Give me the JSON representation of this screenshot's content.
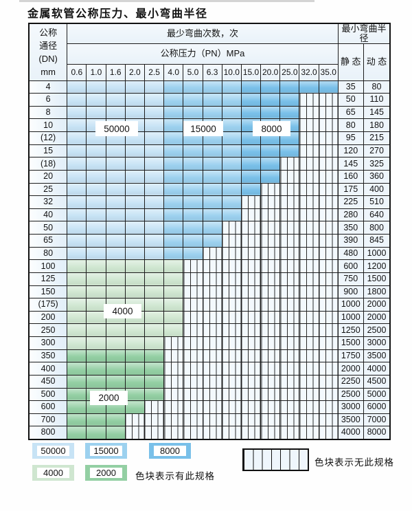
{
  "title": "金属软管公称压力、最小弯曲半径",
  "table": {
    "header": {
      "dn_lines": [
        "公称",
        "通径",
        "(DN)",
        "mm"
      ],
      "bend_cycles": "最少弯曲次数，次",
      "pressure": "公称压力（PN）MPa",
      "min_radius": "最小弯曲半径",
      "static_label": "静 态",
      "dynamic_label": "动 态",
      "pressures": [
        "0.6",
        "1.0",
        "1.6",
        "2.0",
        "2.5",
        "4.0",
        "5.0",
        "6.3",
        "10.0",
        "15.0",
        "20.0",
        "25.0",
        "32.0",
        "35.0"
      ]
    },
    "rows": [
      {
        "dn": "4",
        "cells": [
          [
            "b1",
            5
          ],
          [
            "b2",
            4
          ],
          [
            "b3",
            5
          ]
        ],
        "static": "35",
        "dynamic": "80"
      },
      {
        "dn": "6",
        "cells": [
          [
            "b1",
            5
          ],
          [
            "b2",
            4
          ],
          [
            "b3",
            3
          ]
        ],
        "static": "50",
        "dynamic": "110"
      },
      {
        "dn": "8",
        "cells": [
          [
            "b1",
            5
          ],
          [
            "b2",
            4
          ],
          [
            "b3",
            3
          ]
        ],
        "static": "65",
        "dynamic": "145"
      },
      {
        "dn": "10",
        "cells": [
          [
            "b1",
            5
          ],
          [
            "b2",
            4
          ],
          [
            "b3",
            3
          ]
        ],
        "static": "80",
        "dynamic": "180"
      },
      {
        "dn": "(12)",
        "cells": [
          [
            "b1",
            5
          ],
          [
            "b2",
            4
          ],
          [
            "b3",
            3
          ]
        ],
        "static": "95",
        "dynamic": "215"
      },
      {
        "dn": "15",
        "cells": [
          [
            "b1",
            5
          ],
          [
            "b2",
            4
          ],
          [
            "b3",
            3
          ]
        ],
        "static": "120",
        "dynamic": "270"
      },
      {
        "dn": "(18)",
        "cells": [
          [
            "b1",
            5
          ],
          [
            "b2",
            4
          ],
          [
            "b3",
            2
          ]
        ],
        "static": "145",
        "dynamic": "325"
      },
      {
        "dn": "20",
        "cells": [
          [
            "b1",
            5
          ],
          [
            "b2",
            4
          ],
          [
            "b3",
            2
          ]
        ],
        "static": "160",
        "dynamic": "360"
      },
      {
        "dn": "25",
        "cells": [
          [
            "b1",
            5
          ],
          [
            "b2",
            4
          ],
          [
            "b3",
            1
          ]
        ],
        "static": "175",
        "dynamic": "400"
      },
      {
        "dn": "32",
        "cells": [
          [
            "b1",
            5
          ],
          [
            "b2",
            4
          ]
        ],
        "static": "225",
        "dynamic": "510"
      },
      {
        "dn": "40",
        "cells": [
          [
            "b1",
            5
          ],
          [
            "b2",
            4
          ]
        ],
        "static": "280",
        "dynamic": "640"
      },
      {
        "dn": "50",
        "cells": [
          [
            "b1",
            5
          ],
          [
            "b2",
            3
          ]
        ],
        "static": "350",
        "dynamic": "800"
      },
      {
        "dn": "65",
        "cells": [
          [
            "b1",
            5
          ],
          [
            "b2",
            3
          ]
        ],
        "static": "390",
        "dynamic": "845"
      },
      {
        "dn": "80",
        "cells": [
          [
            "b1",
            5
          ],
          [
            "b2",
            2
          ]
        ],
        "static": "480",
        "dynamic": "1000"
      },
      {
        "dn": "100",
        "cells": [
          [
            "g1",
            6
          ]
        ],
        "static": "600",
        "dynamic": "1200"
      },
      {
        "dn": "125",
        "cells": [
          [
            "g1",
            6
          ]
        ],
        "static": "750",
        "dynamic": "1500"
      },
      {
        "dn": "150",
        "cells": [
          [
            "g1",
            6
          ]
        ],
        "static": "900",
        "dynamic": "1800"
      },
      {
        "dn": "(175)",
        "cells": [
          [
            "g1",
            6
          ]
        ],
        "static": "1000",
        "dynamic": "2000"
      },
      {
        "dn": "200",
        "cells": [
          [
            "g1",
            6
          ]
        ],
        "static": "1000",
        "dynamic": "2000"
      },
      {
        "dn": "250",
        "cells": [
          [
            "g1",
            6
          ]
        ],
        "static": "1250",
        "dynamic": "2500"
      },
      {
        "dn": "300",
        "cells": [
          [
            "g1",
            5
          ]
        ],
        "static": "1500",
        "dynamic": "3000"
      },
      {
        "dn": "350",
        "cells": [
          [
            "g2",
            5
          ]
        ],
        "static": "1750",
        "dynamic": "3500"
      },
      {
        "dn": "400",
        "cells": [
          [
            "g2",
            5
          ]
        ],
        "static": "2000",
        "dynamic": "4000"
      },
      {
        "dn": "450",
        "cells": [
          [
            "g2",
            5
          ]
        ],
        "static": "2250",
        "dynamic": "4500"
      },
      {
        "dn": "500",
        "cells": [
          [
            "g2",
            5
          ]
        ],
        "static": "2500",
        "dynamic": "5000"
      },
      {
        "dn": "600",
        "cells": [
          [
            "g2",
            4
          ]
        ],
        "static": "3000",
        "dynamic": "6000"
      },
      {
        "dn": "700",
        "cells": [
          [
            "g2",
            3
          ]
        ],
        "static": "3500",
        "dynamic": "7000"
      },
      {
        "dn": "800",
        "cells": [
          [
            "g2",
            3
          ]
        ],
        "static": "4000",
        "dynamic": "8000"
      }
    ]
  },
  "grid_labels": [
    {
      "label": "50000"
    },
    {
      "label": "15000"
    },
    {
      "label": "8000"
    },
    {
      "label": "4000"
    },
    {
      "label": "2000"
    }
  ],
  "legend": {
    "blue_items": [
      {
        "label": "50000",
        "color_key": "blue_50000"
      },
      {
        "label": "15000",
        "color_key": "blue_15000"
      },
      {
        "label": "8000",
        "color_key": "blue_8000"
      }
    ],
    "green_items": [
      {
        "label": "4000",
        "color_key": "green_4000"
      },
      {
        "label": "2000",
        "color_key": "green_2000"
      }
    ],
    "has_spec": "色块表示有此规格",
    "no_spec": "色块表示无此规格"
  },
  "colors": {
    "blue_50000": "#c7e3f5",
    "blue_15000": "#9cd1ef",
    "blue_8000": "#79c0e9",
    "green_4000": "#cfe6d0",
    "green_2000": "#93cfa3",
    "striped_bg": "#f3f9fd"
  }
}
